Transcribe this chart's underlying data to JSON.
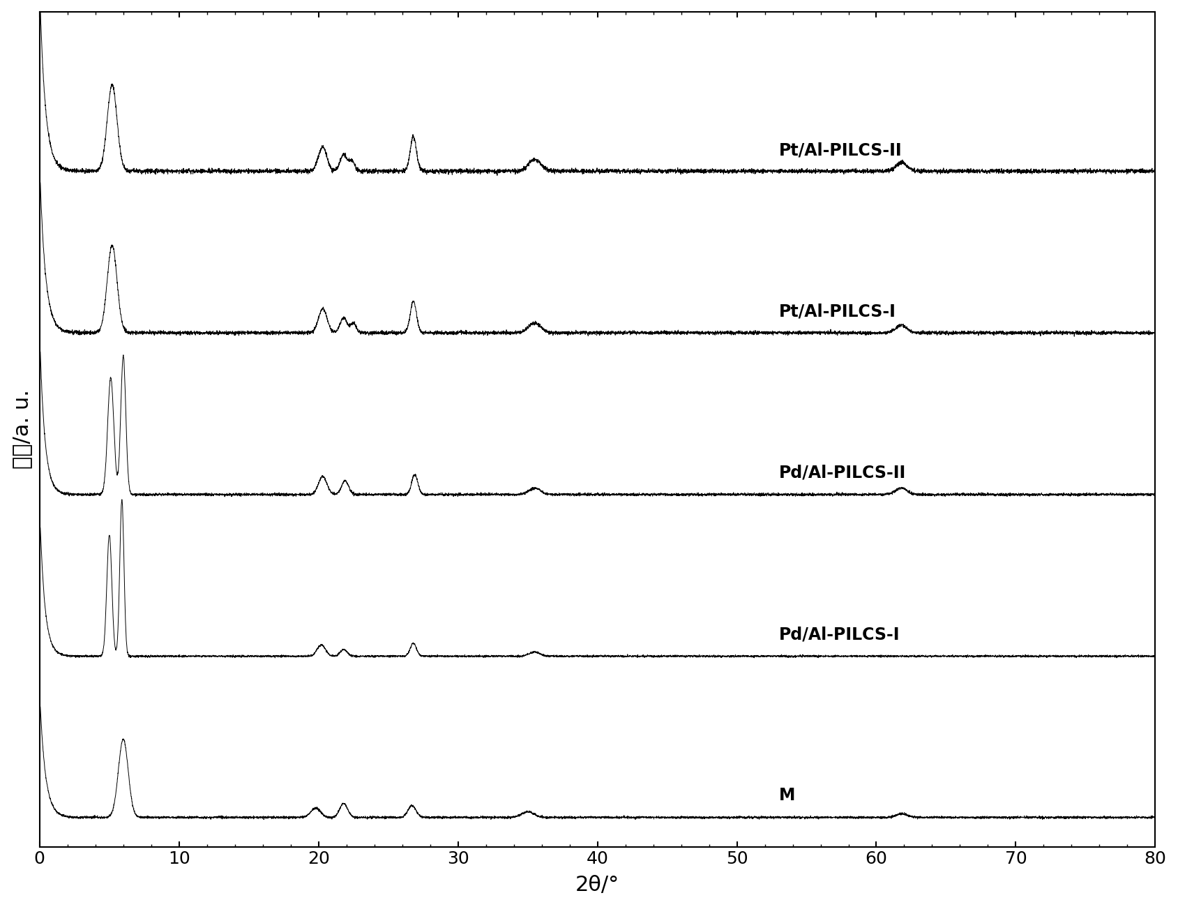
{
  "xlabel": "2θ/°",
  "ylabel": "强度/a. u.",
  "xlim": [
    0,
    80
  ],
  "xticklabels": [
    "0",
    "10",
    "20",
    "30",
    "40",
    "50",
    "60",
    "70",
    "80"
  ],
  "xticks": [
    0,
    10,
    20,
    30,
    40,
    50,
    60,
    70,
    80
  ],
  "labels": [
    "M",
    "Pd/Al-PILCS-I",
    "Pd/Al-PILCS-II",
    "Pt/Al-PILCS-I",
    "Pt/Al-PILCS-II"
  ],
  "line_color": "#000000",
  "bg_color": "#ffffff",
  "fontsize_xlabel": 22,
  "fontsize_ylabel": 22,
  "fontsize_label": 17,
  "fontsize_tick": 18
}
